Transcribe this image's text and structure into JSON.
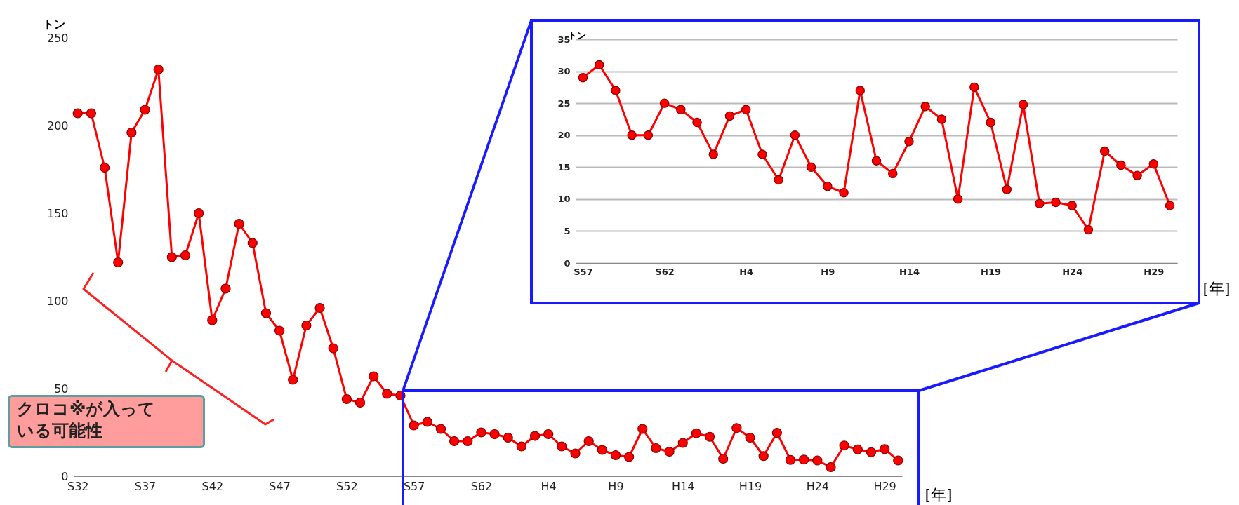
{
  "chart_data": [
    {
      "type": "line",
      "ylabel": "トン",
      "xlabel": "[年]",
      "categories": [
        "S32",
        null,
        null,
        null,
        null,
        "S37",
        null,
        null,
        null,
        null,
        "S42",
        null,
        null,
        null,
        null,
        "S47",
        null,
        null,
        null,
        null,
        "S52",
        null,
        null,
        null,
        null,
        "S57",
        null,
        null,
        null,
        null,
        "S62",
        null,
        null,
        null,
        null,
        "H4",
        null,
        null,
        null,
        null,
        "H9",
        null,
        null,
        null,
        null,
        "H14",
        null,
        null,
        null,
        null,
        "H19",
        null,
        null,
        null,
        null,
        "H24",
        null,
        null,
        null,
        null,
        "H29",
        null
      ],
      "series": [
        {
          "color": "#ff0000",
          "values": [
            207,
            207,
            176,
            122,
            196,
            209,
            232,
            125,
            126,
            150,
            89,
            107,
            144,
            133,
            93,
            83,
            55,
            86,
            96,
            73,
            44,
            42,
            57,
            47,
            46,
            29,
            31,
            27,
            20,
            20,
            25,
            24,
            22,
            17,
            23,
            24,
            17,
            13,
            20,
            15,
            12,
            11,
            27,
            16,
            14,
            19,
            24.5,
            22.5,
            10,
            27.5,
            22,
            11.5,
            24.8,
            9.3,
            9.5,
            9,
            5.2,
            17.5,
            15.3,
            13.7,
            15.5,
            9
          ]
        }
      ],
      "ylim": [
        0,
        250
      ],
      "yticks": [
        0,
        50,
        100,
        150,
        200,
        250
      ],
      "grid": false,
      "marker": "circle",
      "line_style": "solid",
      "annotations": [
        "クロコ※が入っている可能性"
      ]
    },
    {
      "type": "line",
      "ylabel": "トン",
      "xlabel": "[年]",
      "categories": [
        "S57",
        null,
        null,
        null,
        null,
        "S62",
        null,
        null,
        null,
        null,
        "H4",
        null,
        null,
        null,
        null,
        "H9",
        null,
        null,
        null,
        null,
        "H14",
        null,
        null,
        null,
        null,
        "H19",
        null,
        null,
        null,
        null,
        "H24",
        null,
        null,
        null,
        null,
        "H29",
        null
      ],
      "series": [
        {
          "color": "#ff0000",
          "values": [
            29,
            31,
            27,
            20,
            20,
            25,
            24,
            22,
            17,
            23,
            24,
            17,
            13,
            20,
            15,
            12,
            11,
            27,
            16,
            14,
            19,
            24.5,
            22.5,
            10,
            27.5,
            22,
            11.5,
            24.8,
            9.3,
            9.5,
            9,
            5.2,
            17.5,
            15.3,
            13.7,
            15.5,
            9
          ]
        }
      ],
      "ylim": [
        0,
        35
      ],
      "yticks": [
        0,
        5,
        10,
        15,
        20,
        25,
        30,
        35
      ],
      "grid": "y",
      "marker": "circle",
      "line_style": "solid"
    }
  ]
}
